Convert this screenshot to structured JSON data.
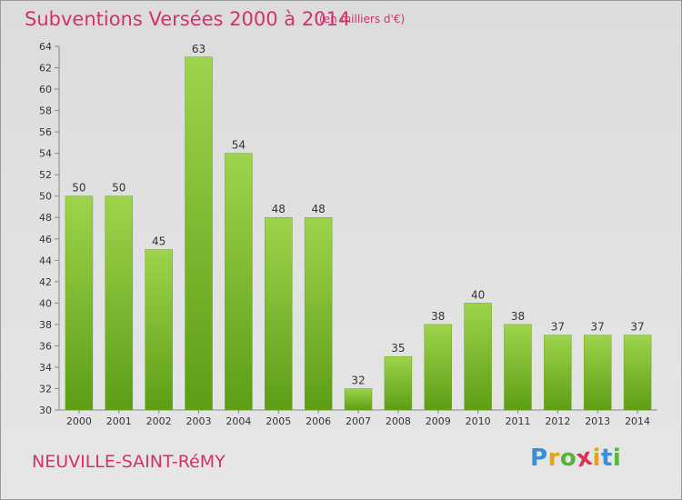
{
  "header": {
    "title": "Subventions Versées 2000 à 2014",
    "unit": "(en milliers d'€)"
  },
  "footer": {
    "commune": "NEUVILLE-SAINT-RéMY",
    "logo_letters": [
      "P",
      "r",
      "o",
      "x",
      "i",
      "t",
      "i"
    ],
    "logo_colors": [
      "#3a8fd6",
      "#e8a21a",
      "#57b53a",
      "#d8344e",
      "#e8a21a",
      "#3a8fd6",
      "#57b53a"
    ]
  },
  "colors": {
    "bar_top": "#9dd44c",
    "bar_bottom": "#5d9e14",
    "accent": "#d5306e"
  },
  "chart_data": {
    "type": "bar",
    "title": "Subventions Versées 2000 à 2014",
    "subtitle": "(en milliers d'€)",
    "xlabel": "",
    "ylabel": "",
    "categories": [
      "2000",
      "2001",
      "2002",
      "2003",
      "2004",
      "2005",
      "2006",
      "2007",
      "2008",
      "2009",
      "2010",
      "2011",
      "2012",
      "2013",
      "2014"
    ],
    "values": [
      50,
      50,
      45,
      63,
      54,
      48,
      48,
      32,
      35,
      38,
      40,
      38,
      37,
      37,
      37
    ],
    "ylim": [
      30,
      64
    ],
    "yticks": [
      30,
      32,
      34,
      36,
      38,
      40,
      42,
      44,
      46,
      48,
      50,
      52,
      54,
      56,
      58,
      60,
      62,
      64
    ],
    "grid": false,
    "legend": "none"
  }
}
